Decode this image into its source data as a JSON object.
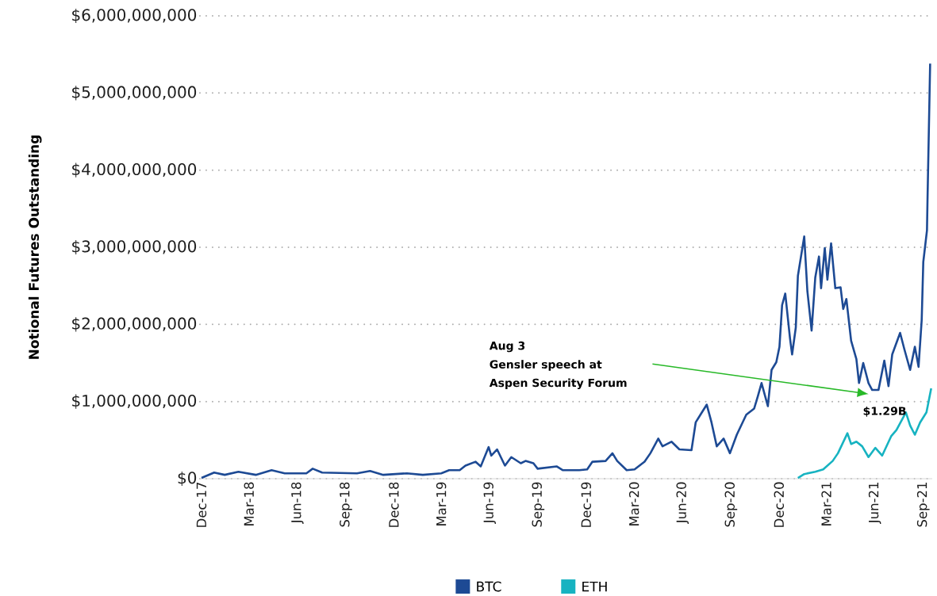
{
  "chart_data": {
    "type": "line",
    "ylabel": "Notional Futures Outstanding",
    "annotations": [
      "Aug 3",
      "Gensler speech at",
      "Aspen Security Forum",
      "$1.29B"
    ],
    "xlim": [
      "2017-11-28",
      "2021-09-18"
    ],
    "xticks": [
      {
        "value": "2017-12-01",
        "label": "Dec-17"
      },
      {
        "value": "2018-03-01",
        "label": "Mar-18"
      },
      {
        "value": "2018-06-01",
        "label": "Jun-18"
      },
      {
        "value": "2018-09-01",
        "label": "Sep-18"
      },
      {
        "value": "2018-12-01",
        "label": "Dec-18"
      },
      {
        "value": "2019-03-01",
        "label": "Mar-19"
      },
      {
        "value": "2019-06-01",
        "label": "Jun-19"
      },
      {
        "value": "2019-09-01",
        "label": "Sep-19"
      },
      {
        "value": "2019-12-01",
        "label": "Dec-19"
      },
      {
        "value": "2020-03-01",
        "label": "Mar-20"
      },
      {
        "value": "2020-06-01",
        "label": "Jun-20"
      },
      {
        "value": "2020-09-01",
        "label": "Sep-20"
      },
      {
        "value": "2020-12-01",
        "label": "Dec-20"
      },
      {
        "value": "2021-03-01",
        "label": "Mar-21"
      },
      {
        "value": "2021-06-01",
        "label": "Jun-21"
      },
      {
        "value": "2021-09-01",
        "label": "Sep-21"
      }
    ],
    "ylim": [
      0,
      6000000000
    ],
    "yticks": [
      {
        "value": 0,
        "label": "$0"
      },
      {
        "value": 1000000000,
        "label": "$1,000,000,000"
      },
      {
        "value": 2000000000,
        "label": "$2,000,000,000"
      },
      {
        "value": 3000000000,
        "label": "$3,000,000,000"
      },
      {
        "value": 4000000000,
        "label": "$4,000,000,000"
      },
      {
        "value": 5000000000,
        "label": "$5,000,000,000"
      },
      {
        "value": 6000000000,
        "label": "$6,000,000,000"
      }
    ],
    "grid": "y",
    "legend": "bottom",
    "marker": "none",
    "line_style": "solid",
    "series": [
      {
        "name": "BTC",
        "color": "#1d4a94",
        "x": [
          "2017-12-01",
          "2017-12-25",
          "2018-01-14",
          "2018-02-09",
          "2018-03-14",
          "2018-04-13",
          "2018-05-08",
          "2018-06-18",
          "2018-06-30",
          "2018-07-18",
          "2018-09-22",
          "2018-10-17",
          "2018-11-11",
          "2018-12-26",
          "2019-01-25",
          "2019-03-01",
          "2019-03-16",
          "2019-04-05",
          "2019-04-16",
          "2019-05-05",
          "2019-05-15",
          "2019-05-30",
          "2019-06-04",
          "2019-06-15",
          "2019-06-30",
          "2019-07-12",
          "2019-07-30",
          "2019-08-08",
          "2019-08-23",
          "2019-08-31",
          "2019-10-06",
          "2019-10-18",
          "2019-11-03",
          "2019-11-18",
          "2019-12-03",
          "2019-12-13",
          "2020-01-07",
          "2020-01-20",
          "2020-01-29",
          "2020-02-16",
          "2020-03-02",
          "2020-03-21",
          "2020-04-01",
          "2020-04-16",
          "2020-04-24",
          "2020-05-11",
          "2020-05-26",
          "2020-06-18",
          "2020-06-26",
          "2020-07-05",
          "2020-07-17",
          "2020-07-26",
          "2020-08-05",
          "2020-08-18",
          "2020-08-30",
          "2020-09-12",
          "2020-09-30",
          "2020-10-15",
          "2020-10-22",
          "2020-10-29",
          "2020-11-10",
          "2020-11-17",
          "2020-11-26",
          "2020-12-02",
          "2020-12-07",
          "2020-12-13",
          "2020-12-22",
          "2020-12-26",
          "2021-01-02",
          "2021-01-06",
          "2021-01-18",
          "2021-01-24",
          "2021-02-01",
          "2021-02-08",
          "2021-02-15",
          "2021-02-19",
          "2021-02-26",
          "2021-03-03",
          "2021-03-10",
          "2021-03-18",
          "2021-03-28",
          "2021-04-02",
          "2021-04-08",
          "2021-04-17",
          "2021-04-27",
          "2021-05-02",
          "2021-05-10",
          "2021-05-20",
          "2021-05-27",
          "2021-06-08",
          "2021-06-19",
          "2021-06-27",
          "2021-07-04",
          "2021-07-19",
          "2021-07-27",
          "2021-08-07",
          "2021-08-16",
          "2021-08-23",
          "2021-08-29",
          "2021-09-01",
          "2021-09-08",
          "2021-09-09",
          "2021-09-14"
        ],
        "values": [
          10000000,
          80000000,
          50000000,
          90000000,
          50000000,
          110000000,
          70000000,
          70000000,
          130000000,
          80000000,
          70000000,
          100000000,
          50000000,
          70000000,
          50000000,
          70000000,
          110000000,
          110000000,
          170000000,
          220000000,
          160000000,
          410000000,
          300000000,
          380000000,
          170000000,
          280000000,
          200000000,
          230000000,
          200000000,
          130000000,
          160000000,
          110000000,
          110000000,
          110000000,
          120000000,
          220000000,
          230000000,
          330000000,
          230000000,
          110000000,
          120000000,
          220000000,
          330000000,
          520000000,
          420000000,
          480000000,
          380000000,
          370000000,
          730000000,
          830000000,
          960000000,
          730000000,
          420000000,
          520000000,
          330000000,
          570000000,
          830000000,
          910000000,
          1070000000,
          1240000000,
          940000000,
          1410000000,
          1510000000,
          1710000000,
          2250000000,
          2400000000,
          1820000000,
          1610000000,
          1960000000,
          2630000000,
          3140000000,
          2430000000,
          1920000000,
          2610000000,
          2880000000,
          2470000000,
          2990000000,
          2580000000,
          3050000000,
          2470000000,
          2480000000,
          2200000000,
          2330000000,
          1790000000,
          1550000000,
          1240000000,
          1500000000,
          1240000000,
          1150000000,
          1150000000,
          1530000000,
          1200000000,
          1610000000,
          1890000000,
          1680000000,
          1410000000,
          1710000000,
          1450000000,
          2060000000,
          2810000000,
          3220000000,
          3610000000,
          5380000000
        ]
      },
      {
        "name": "ETH",
        "color": "#17b3c1",
        "x": [
          "2021-01-06",
          "2021-01-18",
          "2021-02-08",
          "2021-02-23",
          "2021-03-13",
          "2021-03-23",
          "2021-04-10",
          "2021-04-17",
          "2021-04-27",
          "2021-05-08",
          "2021-05-20",
          "2021-06-02",
          "2021-06-15",
          "2021-07-02",
          "2021-07-12",
          "2021-07-30",
          "2021-08-07",
          "2021-08-16",
          "2021-08-26",
          "2021-09-07",
          "2021-09-16"
        ],
        "values": [
          10000000,
          60000000,
          90000000,
          120000000,
          230000000,
          330000000,
          590000000,
          450000000,
          480000000,
          420000000,
          280000000,
          400000000,
          300000000,
          550000000,
          630000000,
          860000000,
          690000000,
          570000000,
          730000000,
          860000000,
          1170000000
        ]
      }
    ]
  }
}
